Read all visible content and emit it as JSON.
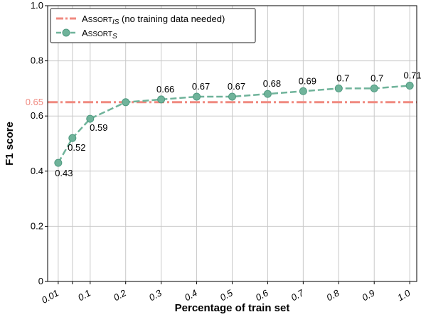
{
  "chart_data": {
    "type": "line",
    "xlabel": "Percentage of train set",
    "ylabel": "F1 score",
    "x_tick_labels": [
      "0.01",
      "0.1",
      "0.2",
      "0.3",
      "0.4",
      "0.5",
      "0.6",
      "0.7",
      "0.8",
      "0.9",
      "1.0"
    ],
    "y_tick_labels": [
      "0",
      "0.2",
      "0.4",
      "0.6",
      "0.8",
      "1.0"
    ],
    "ylim": [
      0,
      1
    ],
    "grid": true,
    "legend_position": "top-left",
    "series": [
      {
        "name": "ASSORT_IS (no training data needed)",
        "legend_main": "Assort",
        "legend_sub": "IS",
        "legend_suffix": " (no training data needed)",
        "style": "dash-dot horizontal line",
        "color": "#f08a80",
        "y_constant": 0.65,
        "y_label": "0.65",
        "label_color": "#f08a80"
      },
      {
        "name": "ASSORT_S",
        "legend_main": "Assort",
        "legend_sub": "S",
        "style": "dashed line with circle markers",
        "color": "#6fb39a",
        "marker_edge": "#4f9a80",
        "x": [
          0.01,
          0.05,
          0.1,
          0.2,
          0.3,
          0.4,
          0.5,
          0.6,
          0.7,
          0.8,
          0.9,
          1.0
        ],
        "y": [
          0.43,
          0.52,
          0.59,
          0.65,
          0.66,
          0.67,
          0.67,
          0.68,
          0.69,
          0.7,
          0.7,
          0.71
        ],
        "data_labels": [
          "0.43",
          "0.52",
          "0.59",
          "",
          "0.66",
          "0.67",
          "0.67",
          "0.68",
          "0.69",
          "0.7",
          "0.7",
          "0.71"
        ]
      }
    ]
  }
}
